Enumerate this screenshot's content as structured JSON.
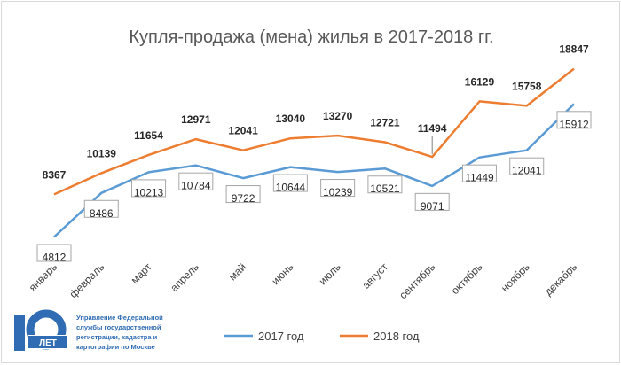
{
  "chart_data": {
    "type": "line",
    "title": "Купля-продажа (мена) жилья в 2017-2018 гг.",
    "categories": [
      "январь",
      "февраль",
      "март",
      "апрель",
      "май",
      "июнь",
      "июль",
      "август",
      "сентябрь",
      "октябрь",
      "ноябрь",
      "декабрь"
    ],
    "series": [
      {
        "name": "2017 год",
        "color": "#5b9bd5",
        "values": [
          4812,
          8486,
          10213,
          10784,
          9722,
          10644,
          10239,
          10521,
          9071,
          11449,
          12041,
          15912
        ]
      },
      {
        "name": "2018 год",
        "color": "#ed7d31",
        "values": [
          8367,
          10139,
          11654,
          12971,
          12041,
          13040,
          13270,
          12721,
          11494,
          16129,
          15758,
          18847
        ]
      }
    ],
    "ylim": [
      3000,
      20000
    ],
    "grid": false,
    "legend_position": "bottom"
  },
  "logo": {
    "number": "10",
    "years_label": "ЛЕТ",
    "lines": [
      "Управление Федеральной",
      "службы государственной",
      "регистрации, кадастра и",
      "картографии по Москве"
    ],
    "color": "#2f6cb3"
  }
}
